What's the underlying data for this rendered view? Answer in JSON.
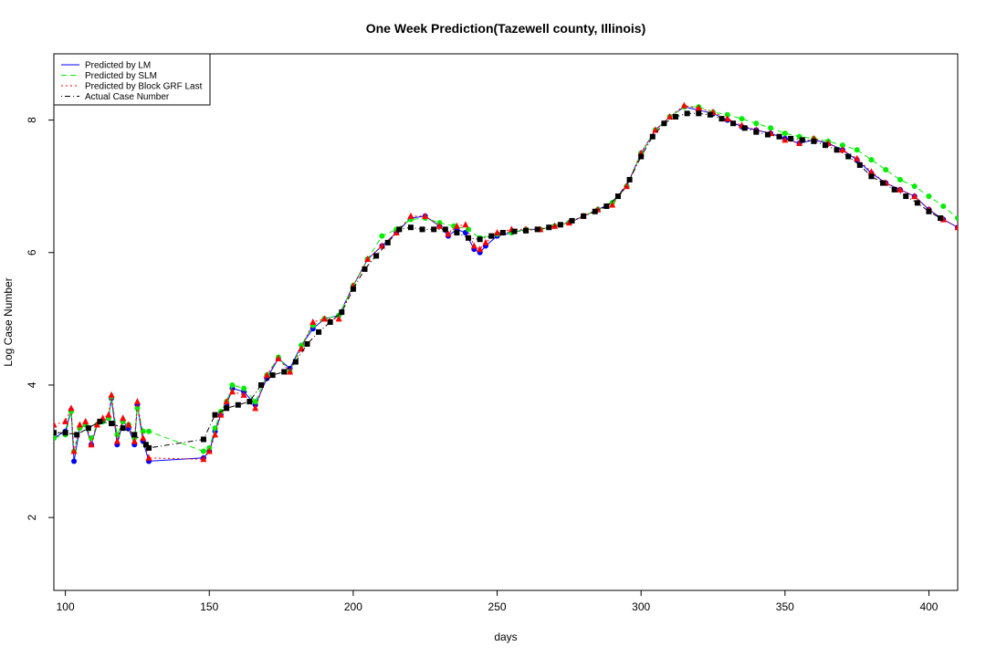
{
  "chart_data": {
    "type": "line",
    "title": "One Week Prediction(Tazewell county, Illinois)",
    "xlabel": "days",
    "ylabel": "Log Case Number",
    "xlim": [
      96,
      410
    ],
    "ylim": [
      0.9,
      9.0
    ],
    "xticks": [
      100,
      150,
      200,
      250,
      300,
      350,
      400
    ],
    "yticks": [
      2,
      4,
      6,
      8
    ],
    "grid": false,
    "legend_position": "top-left",
    "series": [
      {
        "name": "Predicted by LM",
        "color": "#0000ff",
        "line_style": "solid",
        "marker": "circle",
        "points": [
          [
            96,
            3.2
          ],
          [
            100,
            3.3
          ],
          [
            102,
            3.62
          ],
          [
            103,
            2.85
          ],
          [
            105,
            3.35
          ],
          [
            107,
            3.4
          ],
          [
            109,
            3.1
          ],
          [
            111,
            3.4
          ],
          [
            113,
            3.45
          ],
          [
            115,
            3.5
          ],
          [
            116,
            3.8
          ],
          [
            118,
            3.1
          ],
          [
            120,
            3.45
          ],
          [
            122,
            3.35
          ],
          [
            124,
            3.1
          ],
          [
            125,
            3.7
          ],
          [
            127,
            3.15
          ],
          [
            129,
            2.85
          ],
          [
            148,
            2.9
          ],
          [
            150,
            3.0
          ],
          [
            152,
            3.3
          ],
          [
            154,
            3.55
          ],
          [
            156,
            3.7
          ],
          [
            158,
            3.95
          ],
          [
            162,
            3.9
          ],
          [
            166,
            3.7
          ],
          [
            170,
            4.1
          ],
          [
            174,
            4.4
          ],
          [
            178,
            4.25
          ],
          [
            182,
            4.6
          ],
          [
            186,
            4.85
          ],
          [
            190,
            5.0
          ],
          [
            195,
            5.05
          ],
          [
            200,
            5.5
          ],
          [
            205,
            5.9
          ],
          [
            210,
            6.1
          ],
          [
            215,
            6.3
          ],
          [
            220,
            6.52
          ],
          [
            225,
            6.55
          ],
          [
            230,
            6.4
          ],
          [
            233,
            6.25
          ],
          [
            236,
            6.35
          ],
          [
            239,
            6.3
          ],
          [
            242,
            6.05
          ],
          [
            244,
            6.0
          ],
          [
            246,
            6.1
          ],
          [
            250,
            6.25
          ],
          [
            255,
            6.3
          ],
          [
            260,
            6.35
          ],
          [
            265,
            6.35
          ],
          [
            270,
            6.4
          ],
          [
            275,
            6.45
          ],
          [
            280,
            6.55
          ],
          [
            285,
            6.65
          ],
          [
            290,
            6.75
          ],
          [
            295,
            7.0
          ],
          [
            300,
            7.5
          ],
          [
            305,
            7.85
          ],
          [
            310,
            8.05
          ],
          [
            315,
            8.2
          ],
          [
            320,
            8.15
          ],
          [
            325,
            8.1
          ],
          [
            330,
            8.0
          ],
          [
            335,
            7.9
          ],
          [
            340,
            7.85
          ],
          [
            345,
            7.8
          ],
          [
            350,
            7.72
          ],
          [
            355,
            7.65
          ],
          [
            360,
            7.7
          ],
          [
            365,
            7.65
          ],
          [
            370,
            7.55
          ],
          [
            375,
            7.4
          ],
          [
            380,
            7.2
          ],
          [
            385,
            7.05
          ],
          [
            390,
            6.95
          ],
          [
            395,
            6.85
          ],
          [
            400,
            6.65
          ],
          [
            405,
            6.5
          ],
          [
            410,
            6.38
          ]
        ]
      },
      {
        "name": "Predicted by SLM",
        "color": "#00ee00",
        "line_style": "dashed",
        "marker": "circle",
        "points": [
          [
            96,
            3.2
          ],
          [
            100,
            3.25
          ],
          [
            102,
            3.6
          ],
          [
            103,
            3.0
          ],
          [
            105,
            3.35
          ],
          [
            107,
            3.4
          ],
          [
            109,
            3.2
          ],
          [
            111,
            3.4
          ],
          [
            113,
            3.45
          ],
          [
            115,
            3.5
          ],
          [
            116,
            3.82
          ],
          [
            118,
            3.25
          ],
          [
            120,
            3.45
          ],
          [
            122,
            3.4
          ],
          [
            124,
            3.2
          ],
          [
            125,
            3.65
          ],
          [
            127,
            3.3
          ],
          [
            129,
            3.3
          ],
          [
            148,
            3.0
          ],
          [
            150,
            3.05
          ],
          [
            152,
            3.35
          ],
          [
            154,
            3.6
          ],
          [
            156,
            3.75
          ],
          [
            158,
            4.0
          ],
          [
            162,
            3.95
          ],
          [
            166,
            3.75
          ],
          [
            170,
            4.15
          ],
          [
            174,
            4.42
          ],
          [
            178,
            4.2
          ],
          [
            182,
            4.6
          ],
          [
            186,
            4.9
          ],
          [
            190,
            5.0
          ],
          [
            195,
            5.05
          ],
          [
            200,
            5.5
          ],
          [
            205,
            5.9
          ],
          [
            210,
            6.25
          ],
          [
            215,
            6.35
          ],
          [
            220,
            6.5
          ],
          [
            225,
            6.52
          ],
          [
            230,
            6.45
          ],
          [
            235,
            6.4
          ],
          [
            240,
            6.35
          ],
          [
            244,
            6.22
          ],
          [
            250,
            6.28
          ],
          [
            255,
            6.3
          ],
          [
            260,
            6.35
          ],
          [
            265,
            6.35
          ],
          [
            270,
            6.4
          ],
          [
            275,
            6.45
          ],
          [
            280,
            6.55
          ],
          [
            285,
            6.65
          ],
          [
            290,
            6.75
          ],
          [
            295,
            7.0
          ],
          [
            300,
            7.5
          ],
          [
            305,
            7.85
          ],
          [
            310,
            8.05
          ],
          [
            315,
            8.2
          ],
          [
            320,
            8.2
          ],
          [
            325,
            8.12
          ],
          [
            330,
            8.08
          ],
          [
            335,
            8.02
          ],
          [
            340,
            7.95
          ],
          [
            345,
            7.88
          ],
          [
            350,
            7.8
          ],
          [
            355,
            7.75
          ],
          [
            360,
            7.72
          ],
          [
            365,
            7.68
          ],
          [
            370,
            7.62
          ],
          [
            375,
            7.55
          ],
          [
            380,
            7.4
          ],
          [
            385,
            7.25
          ],
          [
            390,
            7.1
          ],
          [
            395,
            7.0
          ],
          [
            400,
            6.85
          ],
          [
            405,
            6.7
          ],
          [
            410,
            6.52
          ]
        ]
      },
      {
        "name": "Predicted by Block GRF Last",
        "color": "#ff0000",
        "line_style": "dotted",
        "marker": "triangle",
        "points": [
          [
            96,
            3.4
          ],
          [
            100,
            3.45
          ],
          [
            102,
            3.65
          ],
          [
            103,
            3.0
          ],
          [
            105,
            3.4
          ],
          [
            107,
            3.45
          ],
          [
            109,
            3.1
          ],
          [
            111,
            3.4
          ],
          [
            113,
            3.5
          ],
          [
            115,
            3.55
          ],
          [
            116,
            3.85
          ],
          [
            118,
            3.15
          ],
          [
            120,
            3.5
          ],
          [
            122,
            3.4
          ],
          [
            124,
            3.15
          ],
          [
            125,
            3.75
          ],
          [
            127,
            3.2
          ],
          [
            129,
            2.9
          ],
          [
            148,
            2.88
          ],
          [
            150,
            3.0
          ],
          [
            152,
            3.25
          ],
          [
            154,
            3.55
          ],
          [
            156,
            3.75
          ],
          [
            158,
            3.9
          ],
          [
            162,
            3.85
          ],
          [
            166,
            3.65
          ],
          [
            170,
            4.15
          ],
          [
            174,
            4.4
          ],
          [
            178,
            4.2
          ],
          [
            182,
            4.55
          ],
          [
            186,
            4.95
          ],
          [
            190,
            5.0
          ],
          [
            195,
            5.0
          ],
          [
            200,
            5.5
          ],
          [
            205,
            5.9
          ],
          [
            210,
            6.1
          ],
          [
            215,
            6.3
          ],
          [
            220,
            6.55
          ],
          [
            225,
            6.55
          ],
          [
            230,
            6.4
          ],
          [
            233,
            6.28
          ],
          [
            236,
            6.4
          ],
          [
            239,
            6.42
          ],
          [
            242,
            6.1
          ],
          [
            244,
            6.05
          ],
          [
            246,
            6.15
          ],
          [
            250,
            6.3
          ],
          [
            255,
            6.35
          ],
          [
            260,
            6.35
          ],
          [
            265,
            6.35
          ],
          [
            270,
            6.4
          ],
          [
            275,
            6.45
          ],
          [
            280,
            6.55
          ],
          [
            285,
            6.65
          ],
          [
            290,
            6.72
          ],
          [
            295,
            7.0
          ],
          [
            300,
            7.5
          ],
          [
            305,
            7.85
          ],
          [
            310,
            8.05
          ],
          [
            315,
            8.22
          ],
          [
            320,
            8.18
          ],
          [
            325,
            8.12
          ],
          [
            330,
            8.02
          ],
          [
            335,
            7.92
          ],
          [
            340,
            7.85
          ],
          [
            345,
            7.8
          ],
          [
            350,
            7.7
          ],
          [
            355,
            7.65
          ],
          [
            360,
            7.72
          ],
          [
            365,
            7.65
          ],
          [
            370,
            7.55
          ],
          [
            375,
            7.42
          ],
          [
            380,
            7.22
          ],
          [
            385,
            7.05
          ],
          [
            390,
            6.95
          ],
          [
            395,
            6.85
          ],
          [
            400,
            6.65
          ],
          [
            405,
            6.5
          ],
          [
            410,
            6.38
          ]
        ]
      },
      {
        "name": "Actual Case Number",
        "color": "#000000",
        "line_style": "dotdash",
        "marker": "square",
        "points": [
          [
            96,
            3.28
          ],
          [
            100,
            3.28
          ],
          [
            104,
            3.25
          ],
          [
            108,
            3.35
          ],
          [
            112,
            3.45
          ],
          [
            116,
            3.42
          ],
          [
            120,
            3.35
          ],
          [
            124,
            3.25
          ],
          [
            128,
            3.1
          ],
          [
            129,
            3.05
          ],
          [
            148,
            3.18
          ],
          [
            152,
            3.55
          ],
          [
            156,
            3.65
          ],
          [
            160,
            3.7
          ],
          [
            164,
            3.75
          ],
          [
            168,
            4.0
          ],
          [
            172,
            4.15
          ],
          [
            176,
            4.2
          ],
          [
            180,
            4.35
          ],
          [
            184,
            4.62
          ],
          [
            188,
            4.8
          ],
          [
            192,
            4.95
          ],
          [
            196,
            5.1
          ],
          [
            200,
            5.45
          ],
          [
            204,
            5.75
          ],
          [
            208,
            5.95
          ],
          [
            212,
            6.15
          ],
          [
            216,
            6.35
          ],
          [
            220,
            6.38
          ],
          [
            224,
            6.35
          ],
          [
            228,
            6.35
          ],
          [
            232,
            6.35
          ],
          [
            236,
            6.3
          ],
          [
            240,
            6.22
          ],
          [
            244,
            6.2
          ],
          [
            248,
            6.25
          ],
          [
            252,
            6.3
          ],
          [
            256,
            6.32
          ],
          [
            260,
            6.33
          ],
          [
            264,
            6.35
          ],
          [
            268,
            6.38
          ],
          [
            272,
            6.42
          ],
          [
            276,
            6.48
          ],
          [
            280,
            6.55
          ],
          [
            284,
            6.62
          ],
          [
            288,
            6.7
          ],
          [
            292,
            6.85
          ],
          [
            296,
            7.1
          ],
          [
            300,
            7.45
          ],
          [
            304,
            7.75
          ],
          [
            308,
            7.95
          ],
          [
            312,
            8.05
          ],
          [
            316,
            8.1
          ],
          [
            320,
            8.1
          ],
          [
            324,
            8.08
          ],
          [
            328,
            8.02
          ],
          [
            332,
            7.95
          ],
          [
            336,
            7.88
          ],
          [
            340,
            7.82
          ],
          [
            344,
            7.78
          ],
          [
            348,
            7.75
          ],
          [
            352,
            7.72
          ],
          [
            356,
            7.7
          ],
          [
            360,
            7.68
          ],
          [
            364,
            7.62
          ],
          [
            368,
            7.55
          ],
          [
            372,
            7.45
          ],
          [
            376,
            7.32
          ],
          [
            380,
            7.15
          ],
          [
            384,
            7.05
          ],
          [
            388,
            6.95
          ],
          [
            392,
            6.85
          ],
          [
            396,
            6.75
          ],
          [
            400,
            6.62
          ],
          [
            404,
            6.52
          ]
        ]
      }
    ]
  }
}
